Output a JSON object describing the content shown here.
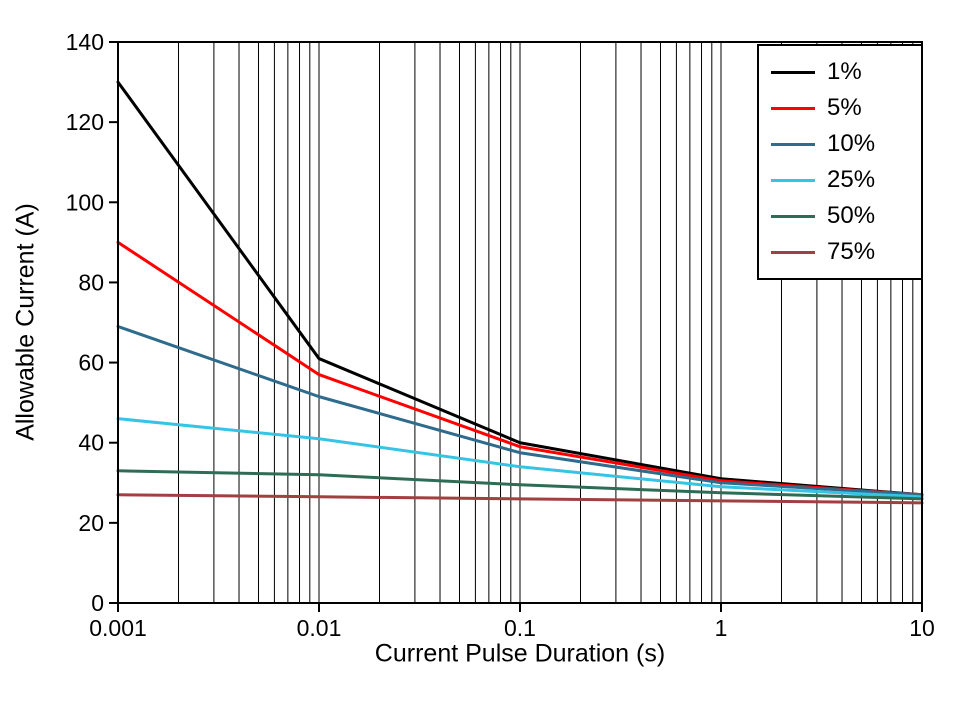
{
  "chart_data": {
    "type": "line",
    "title": "",
    "xlabel": "Current Pulse Duration (s)",
    "ylabel": "Allowable Current (A)",
    "x_scale": "log",
    "xlim": [
      0.001,
      10
    ],
    "ylim": [
      0,
      140
    ],
    "x_ticks": [
      0.001,
      0.01,
      0.1,
      1,
      10
    ],
    "x_tick_labels": [
      "0.001",
      "0.01",
      "0.1",
      "1",
      "10"
    ],
    "y_ticks": [
      0,
      20,
      40,
      60,
      80,
      100,
      120,
      140
    ],
    "grid": "vertical log gridlines with minor decade subdivisions, no horizontal gridlines",
    "legend_position": "top-right",
    "x": [
      0.001,
      0.01,
      0.1,
      1,
      10
    ],
    "series": [
      {
        "name": "1%",
        "color": "#000000",
        "values": [
          130,
          61,
          40,
          31,
          27
        ]
      },
      {
        "name": "5%",
        "color": "#FF0000",
        "values": [
          90,
          57,
          39,
          30.5,
          27
        ]
      },
      {
        "name": "10%",
        "color": "#2E6B8C",
        "values": [
          69,
          51.5,
          37.5,
          30,
          27
        ]
      },
      {
        "name": "25%",
        "color": "#35C4E4",
        "values": [
          46,
          41,
          34,
          29,
          26.5
        ]
      },
      {
        "name": "50%",
        "color": "#2E6C55",
        "values": [
          33,
          32,
          29.5,
          27.5,
          26
        ]
      },
      {
        "name": "75%",
        "color": "#A04040",
        "values": [
          27,
          26.5,
          26,
          25.5,
          25
        ]
      }
    ]
  }
}
